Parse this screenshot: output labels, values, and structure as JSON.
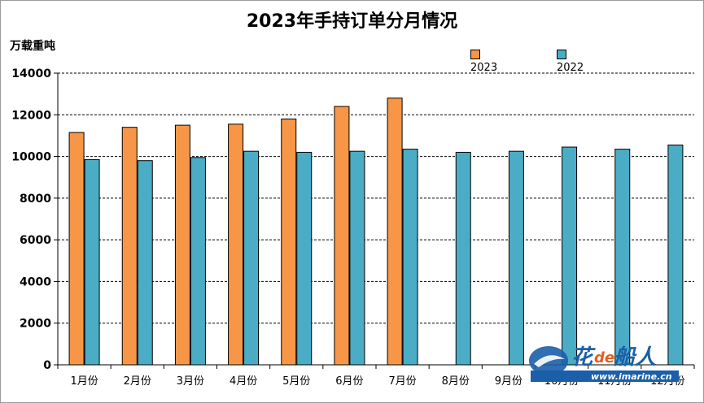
{
  "chart_data": {
    "type": "bar",
    "title": "2023年手持订单分月情况",
    "ylabel": "万载重吨",
    "xlabel": "",
    "categories": [
      "1月份",
      "2月份",
      "3月份",
      "4月份",
      "5月份",
      "6月份",
      "7月份",
      "8月份",
      "9月份",
      "10月份",
      "11月份",
      "12月份"
    ],
    "series": [
      {
        "name": "2023",
        "color": "#f79646",
        "values": [
          11150,
          11400,
          11500,
          11550,
          11800,
          12400,
          12800,
          null,
          null,
          null,
          null,
          null
        ]
      },
      {
        "name": "2022",
        "color": "#4bacc6",
        "values": [
          9850,
          9800,
          9950,
          10250,
          10200,
          10250,
          10350,
          10200,
          10250,
          10450,
          10350,
          10550
        ]
      }
    ],
    "ylim": [
      0,
      14000
    ],
    "yticks": [
      "0",
      "2000",
      "4000",
      "6000",
      "8000",
      "10000",
      "12000",
      "14000"
    ],
    "grid": "dashed horizontal",
    "legend_position": "top-right"
  },
  "watermark": {
    "text_prefix": "花",
    "text_de": "de",
    "text_suffix": "船人",
    "url": "www.imarine.cn"
  }
}
